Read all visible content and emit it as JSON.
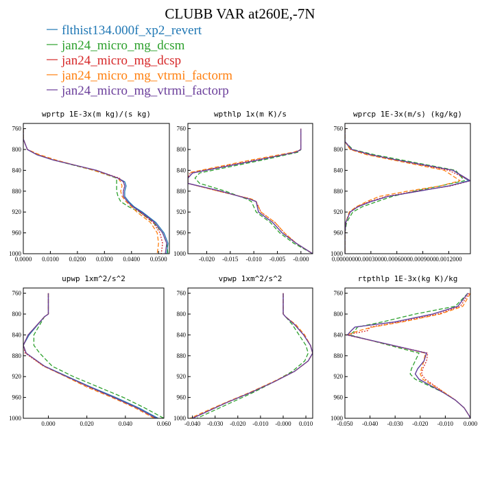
{
  "figure": {
    "title": "CLUBB VAR at260E,-7N",
    "legend": [
      {
        "name": "flthist134.000f_xp2_revert",
        "color": "#1f77b4",
        "dash": "solid"
      },
      {
        "name": "jan24_micro_mg_dcsm",
        "color": "#2ca02c",
        "dash": "dashed"
      },
      {
        "name": "jan24_micro_mg_dcsp",
        "color": "#d62728",
        "dash": "dotted"
      },
      {
        "name": "jan24_micro_mg_vtrmi_factorm",
        "color": "#ff7f0e",
        "dash": "dashed"
      },
      {
        "name": "jan24_micro_mg_vtrmi_factorp",
        "color": "#6a3d9a",
        "dash": "solid"
      }
    ]
  },
  "chart_data": [
    {
      "type": "line",
      "title": "wprtp  1E-3x(m kg)/(s kg)",
      "xlim": [
        0.0,
        0.054
      ],
      "ylim": [
        1000,
        750
      ],
      "xticks": [
        0.0,
        0.01,
        0.02,
        0.03,
        0.04,
        0.05
      ],
      "xticklabels": [
        "0.0000",
        "0.0100",
        "0.0200",
        "0.0300",
        "0.0400",
        "0.0500"
      ],
      "yticks": [
        760,
        800,
        840,
        880,
        920,
        960,
        1000
      ],
      "y": [
        760,
        780,
        800,
        810,
        820,
        840,
        855,
        862,
        870,
        880,
        890,
        900,
        910,
        920,
        940,
        960,
        980,
        1000
      ],
      "series": [
        {
          "values": [
            0.0,
            0.0,
            0.0015,
            0.005,
            0.011,
            0.027,
            0.035,
            0.0375,
            0.038,
            0.0375,
            0.0375,
            0.039,
            0.041,
            0.044,
            0.049,
            0.052,
            0.0535,
            0.053
          ]
        },
        {
          "values": [
            0.0,
            0.0,
            0.0015,
            0.005,
            0.011,
            0.026,
            0.0345,
            0.0345,
            0.0345,
            0.0345,
            0.035,
            0.036,
            0.039,
            0.043,
            0.048,
            0.0515,
            0.053,
            0.0535
          ]
        },
        {
          "values": [
            0.0,
            0.0,
            0.0015,
            0.0055,
            0.011,
            0.027,
            0.0355,
            0.037,
            0.0375,
            0.037,
            0.037,
            0.0385,
            0.0405,
            0.043,
            0.048,
            0.0505,
            0.0515,
            0.051
          ]
        },
        {
          "values": [
            0.0,
            0.0,
            0.0015,
            0.006,
            0.012,
            0.026,
            0.035,
            0.036,
            0.0365,
            0.036,
            0.0365,
            0.038,
            0.04,
            0.042,
            0.047,
            0.0495,
            0.05,
            0.0495
          ]
        },
        {
          "values": [
            0.0,
            0.0,
            0.0015,
            0.005,
            0.011,
            0.027,
            0.035,
            0.037,
            0.0375,
            0.037,
            0.037,
            0.0385,
            0.0405,
            0.0435,
            0.0485,
            0.0515,
            0.053,
            0.0525
          ]
        }
      ]
    },
    {
      "type": "line",
      "title": "wpthlp  1x(m K)/s",
      "xlim": [
        -0.024,
        0.0025
      ],
      "ylim": [
        1000,
        750
      ],
      "xticks": [
        -0.02,
        -0.015,
        -0.01,
        -0.005,
        0.0
      ],
      "xticklabels": [
        "-0.020",
        "-0.015",
        "-0.010",
        "-0.005",
        "-0.000"
      ],
      "yticks": [
        760,
        800,
        840,
        880,
        920,
        960,
        1000
      ],
      "y": [
        760,
        800,
        805,
        820,
        845,
        855,
        865,
        880,
        895,
        900,
        920,
        940,
        960,
        980,
        1000
      ],
      "series": [
        {
          "values": [
            0.0,
            0.0,
            -0.001,
            -0.009,
            -0.023,
            -0.024,
            -0.024,
            -0.017,
            -0.011,
            -0.0095,
            -0.009,
            -0.006,
            -0.004,
            -0.001,
            0.0025
          ]
        },
        {
          "values": [
            0.0,
            0.0,
            -0.0005,
            -0.008,
            -0.0215,
            -0.0225,
            -0.0215,
            -0.016,
            -0.0115,
            -0.0105,
            -0.0095,
            -0.0065,
            -0.0045,
            -0.0015,
            0.0025
          ]
        },
        {
          "values": [
            0.0,
            0.0,
            -0.001,
            -0.0095,
            -0.0235,
            -0.024,
            -0.024,
            -0.0175,
            -0.0105,
            -0.0095,
            -0.0085,
            -0.0055,
            -0.0035,
            -0.001,
            0.0025
          ]
        },
        {
          "values": [
            0.0,
            0.0,
            -0.0015,
            -0.0105,
            -0.024,
            -0.024,
            -0.024,
            -0.0175,
            -0.0105,
            -0.0095,
            -0.0085,
            -0.0055,
            -0.0035,
            -0.001,
            0.0025
          ]
        },
        {
          "values": [
            0.0,
            0.0,
            -0.001,
            -0.009,
            -0.023,
            -0.024,
            -0.024,
            -0.017,
            -0.011,
            -0.0095,
            -0.009,
            -0.006,
            -0.004,
            -0.001,
            0.0025
          ]
        }
      ]
    },
    {
      "type": "line",
      "title": "wprcp  1E-3x(m/s) (kg/kg)",
      "xlim": [
        0.0,
        0.00145
      ],
      "ylim": [
        1000,
        750
      ],
      "xticks": [
        0.0,
        0.0003,
        0.0006,
        0.0009,
        0.0012
      ],
      "xticklabels": [
        "0.0000000",
        "0.0003000",
        "0.0006000",
        "0.0009000",
        "0.0012000"
      ],
      "yticks": [
        760,
        800,
        840,
        880,
        920,
        960,
        1000
      ],
      "y": [
        760,
        785,
        800,
        810,
        820,
        840,
        860,
        870,
        880,
        890,
        900,
        910,
        920,
        940,
        960,
        980,
        1000
      ],
      "series": [
        {
          "values": [
            0.0,
            0.0,
            8e-05,
            0.0003,
            0.0006,
            0.00125,
            0.00143,
            0.0012,
            0.00085,
            0.0005,
            0.0003,
            0.00015,
            6e-05,
            1e-05,
            0.0,
            0.0,
            0.0
          ]
        },
        {
          "values": [
            0.0,
            0.0,
            9e-05,
            0.00034,
            0.00065,
            0.00128,
            0.00138,
            0.0011,
            0.0008,
            0.00055,
            0.00037,
            0.0002,
            9e-05,
            2e-05,
            0.0,
            0.0,
            0.0
          ]
        },
        {
          "values": [
            0.0,
            0.0,
            7e-05,
            0.00028,
            0.00058,
            0.0012,
            0.00145,
            0.00122,
            0.00082,
            0.00048,
            0.00028,
            0.00014,
            6e-05,
            1e-05,
            0.0,
            0.0,
            0.0
          ]
        },
        {
          "values": [
            0.0,
            0.0,
            6e-05,
            0.00025,
            0.00055,
            0.00115,
            0.00133,
            0.0011,
            0.00072,
            0.0004,
            0.00025,
            0.00013,
            5e-05,
            1e-05,
            0.0,
            0.0,
            0.0
          ]
        },
        {
          "values": [
            0.0,
            0.0,
            8e-05,
            0.0003,
            0.0006,
            0.00125,
            0.00145,
            0.0012,
            0.00085,
            0.0005,
            0.0003,
            0.00015,
            6e-05,
            1e-05,
            0.0,
            0.0,
            0.0
          ]
        }
      ]
    },
    {
      "type": "line",
      "title": "upwp  1xm^2/s^2",
      "xlim": [
        -0.013,
        0.06
      ],
      "ylim": [
        1000,
        750
      ],
      "xticks": [
        0.0,
        0.02,
        0.04,
        0.06
      ],
      "xticklabels": [
        "0.000",
        "0.020",
        "0.040",
        "0.060"
      ],
      "yticks": [
        760,
        800,
        840,
        880,
        920,
        960,
        1000
      ],
      "y": [
        760,
        800,
        805,
        840,
        860,
        875,
        900,
        920,
        940,
        960,
        980,
        1000
      ],
      "series": [
        {
          "values": [
            0.0,
            0.0,
            -0.002,
            -0.01,
            -0.013,
            -0.0115,
            -0.002,
            0.01,
            0.022,
            0.035,
            0.047,
            0.057
          ]
        },
        {
          "values": [
            0.0,
            0.0,
            -0.002,
            -0.0075,
            -0.0075,
            -0.0045,
            0.002,
            0.013,
            0.026,
            0.039,
            0.05,
            0.06
          ]
        },
        {
          "values": [
            0.0,
            0.0,
            -0.002,
            -0.0105,
            -0.013,
            -0.012,
            -0.0025,
            0.0095,
            0.021,
            0.034,
            0.046,
            0.056
          ]
        },
        {
          "values": [
            0.0,
            0.0,
            -0.002,
            -0.0105,
            -0.013,
            -0.0115,
            -0.0025,
            0.009,
            0.02,
            0.033,
            0.045,
            0.055
          ]
        },
        {
          "values": [
            0.0,
            0.0,
            -0.002,
            -0.0105,
            -0.013,
            -0.0115,
            -0.002,
            0.0095,
            0.0215,
            0.034,
            0.046,
            0.056
          ]
        }
      ]
    },
    {
      "type": "line",
      "title": "vpwp  1xm^2/s^2",
      "xlim": [
        -0.042,
        0.013
      ],
      "ylim": [
        1000,
        750
      ],
      "xticks": [
        -0.04,
        -0.03,
        -0.02,
        -0.01,
        0.0,
        0.01
      ],
      "xticklabels": [
        "-0.040",
        "-0.030",
        "-0.020",
        "-0.010",
        "-0.000",
        "0.010"
      ],
      "yticks": [
        760,
        800,
        840,
        880,
        920,
        960,
        1000
      ],
      "y": [
        760,
        800,
        805,
        820,
        840,
        860,
        875,
        890,
        910,
        930,
        950,
        970,
        990,
        1000
      ],
      "series": [
        {
          "values": [
            0.0,
            0.0,
            0.001,
            0.005,
            0.009,
            0.012,
            0.013,
            0.011,
            0.005,
            -0.004,
            -0.014,
            -0.025,
            -0.035,
            -0.04
          ]
        },
        {
          "values": [
            0.0,
            0.0,
            0.001,
            0.004,
            0.007,
            0.01,
            0.011,
            0.0095,
            0.004,
            -0.004,
            -0.013,
            -0.023,
            -0.033,
            -0.038
          ]
        },
        {
          "values": [
            0.0,
            0.0,
            0.001,
            0.005,
            0.009,
            0.012,
            0.013,
            0.011,
            0.005,
            -0.004,
            -0.014,
            -0.025,
            -0.035,
            -0.04
          ]
        },
        {
          "values": [
            0.0,
            0.0,
            0.001,
            0.0055,
            0.0095,
            0.012,
            0.013,
            0.011,
            0.005,
            -0.0045,
            -0.0145,
            -0.0255,
            -0.036,
            -0.041
          ]
        },
        {
          "values": [
            0.0,
            0.0,
            0.001,
            0.005,
            0.009,
            0.012,
            0.013,
            0.011,
            0.005,
            -0.004,
            -0.014,
            -0.025,
            -0.035,
            -0.04
          ]
        }
      ]
    },
    {
      "type": "line",
      "title": "rtpthlp  1E-3x(kg K)/kg",
      "xlim": [
        -0.05,
        0.0
      ],
      "ylim": [
        1000,
        750
      ],
      "xticks": [
        -0.05,
        -0.04,
        -0.03,
        -0.02,
        -0.01,
        0.0
      ],
      "xticklabels": [
        "-0.050",
        "-0.040",
        "-0.030",
        "-0.020",
        "-0.010",
        "0.000"
      ],
      "yticks": [
        760,
        800,
        840,
        880,
        920,
        960,
        1000
      ],
      "y": [
        760,
        785,
        800,
        815,
        825,
        832,
        840,
        875,
        890,
        905,
        915,
        925,
        950,
        965,
        980,
        995,
        1000
      ],
      "series": [
        {
          "values": [
            -0.001,
            -0.005,
            -0.015,
            -0.03,
            -0.046,
            -0.0475,
            -0.049,
            -0.0175,
            -0.0185,
            -0.021,
            -0.022,
            -0.0205,
            -0.011,
            -0.006,
            -0.0025,
            -0.0005,
            0.0
          ]
        },
        {
          "values": [
            -0.001,
            -0.006,
            -0.022,
            -0.035,
            -0.045,
            -0.046,
            -0.048,
            -0.0205,
            -0.022,
            -0.0235,
            -0.024,
            -0.022,
            -0.011,
            -0.006,
            -0.0025,
            -0.0005,
            0.0
          ]
        },
        {
          "values": [
            -0.0005,
            -0.004,
            -0.013,
            -0.028,
            -0.04,
            -0.041,
            -0.0495,
            -0.017,
            -0.0175,
            -0.019,
            -0.0195,
            -0.018,
            -0.0105,
            -0.006,
            -0.0025,
            -0.0005,
            0.0
          ]
        },
        {
          "values": [
            0.0,
            -0.003,
            -0.012,
            -0.027,
            -0.039,
            -0.0445,
            -0.049,
            -0.018,
            -0.0185,
            -0.0195,
            -0.02,
            -0.019,
            -0.0105,
            -0.006,
            -0.0025,
            -0.0005,
            0.0
          ]
        },
        {
          "values": [
            -0.001,
            -0.005,
            -0.015,
            -0.03,
            -0.046,
            -0.0475,
            -0.049,
            -0.0175,
            -0.0185,
            -0.021,
            -0.022,
            -0.0205,
            -0.011,
            -0.006,
            -0.0025,
            -0.0005,
            0.0
          ]
        }
      ]
    }
  ]
}
